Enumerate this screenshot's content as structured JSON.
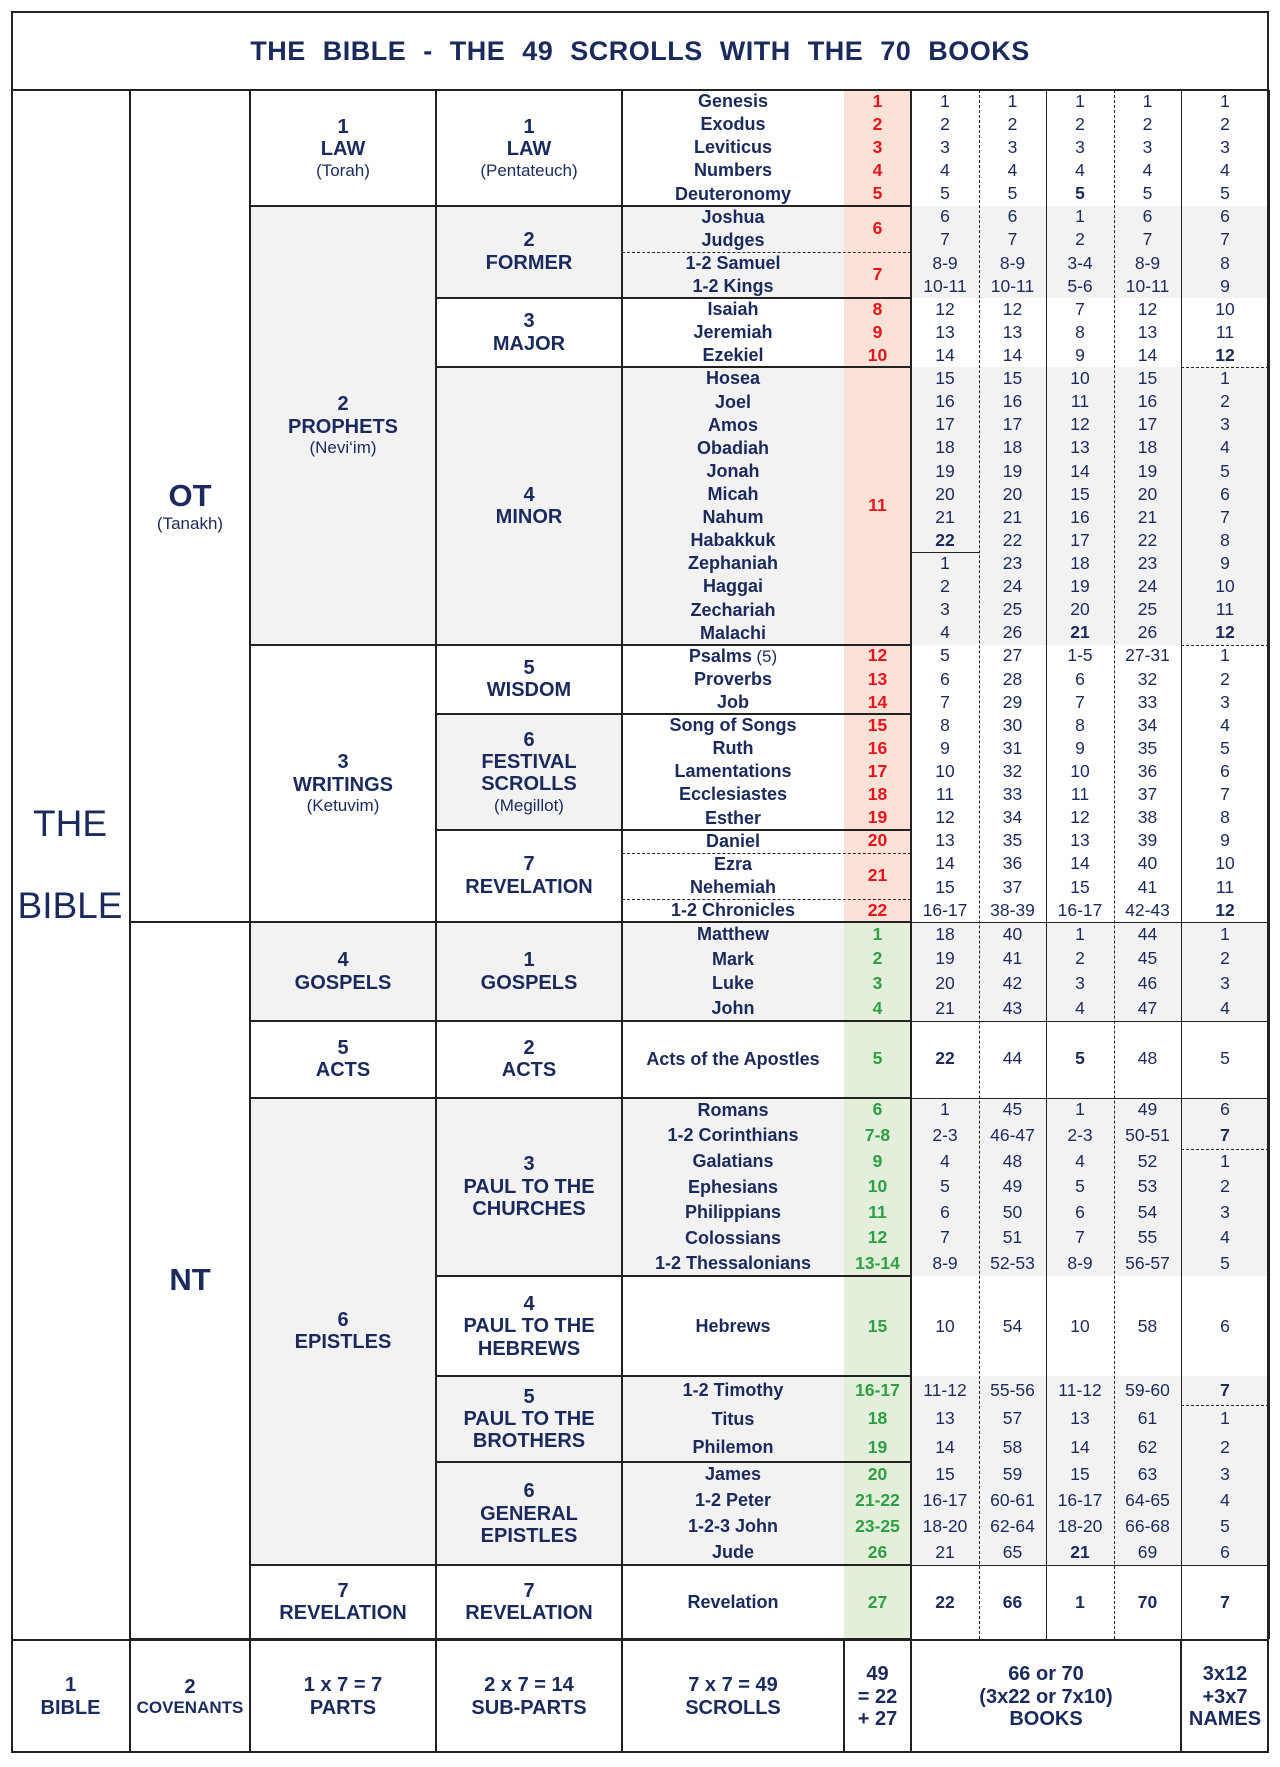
{
  "title": "THE BIBLE - THE 49 SCROLLS WITH THE 70 BOOKS",
  "bible": [
    "THE",
    "BIBLE"
  ],
  "testaments": [
    {
      "label": "OT",
      "sub": "(Tanakh)"
    },
    {
      "label": "NT"
    }
  ],
  "parts": [
    {
      "number": "1",
      "lines": [
        "LAW"
      ],
      "sub": "(Torah)"
    },
    {
      "number": "2",
      "lines": [
        "PROPHETS"
      ],
      "sub": "(Nevi‘im)"
    },
    {
      "number": "3",
      "lines": [
        "WRITINGS"
      ],
      "sub": "(Ketuvim)"
    },
    {
      "number": "4",
      "lines": [
        "GOSPELS"
      ]
    },
    {
      "number": "5",
      "lines": [
        "ACTS"
      ]
    },
    {
      "number": "6",
      "lines": [
        "EPISTLES"
      ]
    },
    {
      "number": "7",
      "lines": [
        "REVELATION"
      ]
    }
  ],
  "subparts": [
    {
      "number": "1",
      "lines": [
        "LAW"
      ],
      "sub": "(Pentateuch)"
    },
    {
      "number": "2",
      "lines": [
        "FORMER"
      ]
    },
    {
      "number": "3",
      "lines": [
        "MAJOR"
      ]
    },
    {
      "number": "4",
      "lines": [
        "MINOR"
      ]
    },
    {
      "number": "5",
      "lines": [
        "WISDOM"
      ]
    },
    {
      "number": "6",
      "lines": [
        "FESTIVAL",
        "SCROLLS"
      ],
      "sub": "(Megillot)"
    },
    {
      "number": "7",
      "lines": [
        "REVELATION"
      ]
    },
    {
      "number": "1",
      "lines": [
        "GOSPELS"
      ]
    },
    {
      "number": "2",
      "lines": [
        "ACTS"
      ]
    },
    {
      "number": "3",
      "lines": [
        "PAUL TO THE",
        "CHURCHES"
      ]
    },
    {
      "number": "4",
      "lines": [
        "PAUL TO THE",
        "HEBREWS"
      ]
    },
    {
      "number": "5",
      "lines": [
        "PAUL TO THE",
        "BROTHERS"
      ]
    },
    {
      "number": "6",
      "lines": [
        "GENERAL",
        "EPISTLES"
      ]
    },
    {
      "number": "7",
      "lines": [
        "REVELATION"
      ]
    }
  ],
  "scrolls": [
    "1",
    "2",
    "3",
    "4",
    "5",
    "6",
    "7",
    "8",
    "9",
    "10",
    "11",
    "12",
    "13",
    "14",
    "15",
    "16",
    "17",
    "18",
    "19",
    "20",
    "21",
    "22",
    "1",
    "2",
    "3",
    "4",
    "5",
    "6",
    "7-8",
    "9",
    "10",
    "11",
    "12",
    "13-14",
    "15",
    "16-17",
    "18",
    "19",
    "20",
    "21-22",
    "23-25",
    "26",
    "27"
  ],
  "books": [
    {
      "name": "Genesis",
      "numbers": [
        "1",
        "1",
        "1",
        "1",
        "1"
      ]
    },
    {
      "name": "Exodus",
      "numbers": [
        "2",
        "2",
        "2",
        "2",
        "2"
      ]
    },
    {
      "name": "Leviticus",
      "numbers": [
        "3",
        "3",
        "3",
        "3",
        "3"
      ]
    },
    {
      "name": "Numbers",
      "numbers": [
        "4",
        "4",
        "4",
        "4",
        "4"
      ]
    },
    {
      "name": "Deuteronomy",
      "numbers": [
        "5",
        "5",
        "5",
        "5",
        "5"
      ]
    },
    {
      "name": "Joshua",
      "numbers": [
        "6",
        "6",
        "1",
        "6",
        "6"
      ]
    },
    {
      "name": "Judges",
      "numbers": [
        "7",
        "7",
        "2",
        "7",
        "7"
      ]
    },
    {
      "name": "1-2 Samuel",
      "numbers": [
        "8-9",
        "8-9",
        "3-4",
        "8-9",
        "8"
      ]
    },
    {
      "name": "1-2 Kings",
      "numbers": [
        "10-11",
        "10-11",
        "5-6",
        "10-11",
        "9"
      ]
    },
    {
      "name": "Isaiah",
      "numbers": [
        "12",
        "12",
        "7",
        "12",
        "10"
      ]
    },
    {
      "name": "Jeremiah",
      "numbers": [
        "13",
        "13",
        "8",
        "13",
        "11"
      ]
    },
    {
      "name": "Ezekiel",
      "numbers": [
        "14",
        "14",
        "9",
        "14",
        "12"
      ]
    },
    {
      "name": "Hosea",
      "numbers": [
        "15",
        "15",
        "10",
        "15",
        "1"
      ]
    },
    {
      "name": "Joel",
      "numbers": [
        "16",
        "16",
        "11",
        "16",
        "2"
      ]
    },
    {
      "name": "Amos",
      "numbers": [
        "17",
        "17",
        "12",
        "17",
        "3"
      ]
    },
    {
      "name": "Obadiah",
      "numbers": [
        "18",
        "18",
        "13",
        "18",
        "4"
      ]
    },
    {
      "name": "Jonah",
      "numbers": [
        "19",
        "19",
        "14",
        "19",
        "5"
      ]
    },
    {
      "name": "Micah",
      "numbers": [
        "20",
        "20",
        "15",
        "20",
        "6"
      ]
    },
    {
      "name": "Nahum",
      "numbers": [
        "21",
        "21",
        "16",
        "21",
        "7"
      ]
    },
    {
      "name": "Habakkuk",
      "numbers": [
        "22",
        "22",
        "17",
        "22",
        "8"
      ]
    },
    {
      "name": "Zephaniah",
      "numbers": [
        "1",
        "23",
        "18",
        "23",
        "9"
      ]
    },
    {
      "name": "Haggai",
      "numbers": [
        "2",
        "24",
        "19",
        "24",
        "10"
      ]
    },
    {
      "name": "Zechariah",
      "numbers": [
        "3",
        "25",
        "20",
        "25",
        "11"
      ]
    },
    {
      "name": "Malachi",
      "numbers": [
        "4",
        "26",
        "21",
        "26",
        "12"
      ]
    },
    {
      "name": "Psalms",
      "note": "(5)",
      "numbers": [
        "5",
        "27",
        "1-5",
        "27-31",
        "1"
      ]
    },
    {
      "name": "Proverbs",
      "numbers": [
        "6",
        "28",
        "6",
        "32",
        "2"
      ]
    },
    {
      "name": "Job",
      "numbers": [
        "7",
        "29",
        "7",
        "33",
        "3"
      ]
    },
    {
      "name": "Song of Songs",
      "numbers": [
        "8",
        "30",
        "8",
        "34",
        "4"
      ]
    },
    {
      "name": "Ruth",
      "numbers": [
        "9",
        "31",
        "9",
        "35",
        "5"
      ]
    },
    {
      "name": "Lamentations",
      "numbers": [
        "10",
        "32",
        "10",
        "36",
        "6"
      ]
    },
    {
      "name": "Ecclesiastes",
      "numbers": [
        "11",
        "33",
        "11",
        "37",
        "7"
      ]
    },
    {
      "name": "Esther",
      "numbers": [
        "12",
        "34",
        "12",
        "38",
        "8"
      ]
    },
    {
      "name": "Daniel",
      "numbers": [
        "13",
        "35",
        "13",
        "39",
        "9"
      ]
    },
    {
      "name": "Ezra",
      "numbers": [
        "14",
        "36",
        "14",
        "40",
        "10"
      ]
    },
    {
      "name": "Nehemiah",
      "numbers": [
        "15",
        "37",
        "15",
        "41",
        "11"
      ]
    },
    {
      "name": "1-2 Chronicles",
      "numbers": [
        "16-17",
        "38-39",
        "16-17",
        "42-43",
        "12"
      ]
    },
    {
      "name": "Matthew",
      "numbers": [
        "18",
        "40",
        "1",
        "44",
        "1"
      ]
    },
    {
      "name": "Mark",
      "numbers": [
        "19",
        "41",
        "2",
        "45",
        "2"
      ]
    },
    {
      "name": "Luke",
      "numbers": [
        "20",
        "42",
        "3",
        "46",
        "3"
      ]
    },
    {
      "name": "John",
      "numbers": [
        "21",
        "43",
        "4",
        "47",
        "4"
      ]
    },
    {
      "name": "Acts of the Apostles",
      "numbers": [
        "22",
        "44",
        "5",
        "48",
        "5"
      ]
    },
    {
      "name": "Romans",
      "numbers": [
        "1",
        "45",
        "1",
        "49",
        "6"
      ]
    },
    {
      "name": "1-2 Corinthians",
      "numbers": [
        "2-3",
        "46-47",
        "2-3",
        "50-51",
        "7"
      ]
    },
    {
      "name": "Galatians",
      "numbers": [
        "4",
        "48",
        "4",
        "52",
        "1"
      ]
    },
    {
      "name": "Ephesians",
      "numbers": [
        "5",
        "49",
        "5",
        "53",
        "2"
      ]
    },
    {
      "name": "Philippians",
      "numbers": [
        "6",
        "50",
        "6",
        "54",
        "3"
      ]
    },
    {
      "name": "Colossians",
      "numbers": [
        "7",
        "51",
        "7",
        "55",
        "4"
      ]
    },
    {
      "name": "1-2 Thessalonians",
      "numbers": [
        "8-9",
        "52-53",
        "8-9",
        "56-57",
        "5"
      ]
    },
    {
      "name": "Hebrews",
      "numbers": [
        "10",
        "54",
        "10",
        "58",
        "6"
      ]
    },
    {
      "name": "1-2 Timothy",
      "numbers": [
        "11-12",
        "55-56",
        "11-12",
        "59-60",
        "7"
      ]
    },
    {
      "name": "Titus",
      "numbers": [
        "13",
        "57",
        "13",
        "61",
        "1"
      ]
    },
    {
      "name": "Philemon",
      "numbers": [
        "14",
        "58",
        "14",
        "62",
        "2"
      ]
    },
    {
      "name": "James",
      "numbers": [
        "15",
        "59",
        "15",
        "63",
        "3"
      ]
    },
    {
      "name": "1-2 Peter",
      "numbers": [
        "16-17",
        "60-61",
        "16-17",
        "64-65",
        "4"
      ]
    },
    {
      "name": "1-2-3 John",
      "numbers": [
        "18-20",
        "62-64",
        "18-20",
        "66-68",
        "5"
      ]
    },
    {
      "name": "Jude",
      "numbers": [
        "21",
        "65",
        "21",
        "69",
        "6"
      ]
    },
    {
      "name": "Revelation",
      "numbers": [
        "22",
        "66",
        "1",
        "70",
        "7"
      ]
    }
  ],
  "footer": [
    {
      "lines": [
        "1",
        "BIBLE"
      ]
    },
    {
      "lines": [
        "2",
        "COVENANTS"
      ]
    },
    {
      "lines": [
        "1 x 7 = 7",
        "PARTS"
      ]
    },
    {
      "lines": [
        "2 x 7 = 14",
        "SUB-PARTS"
      ]
    },
    {
      "lines": [
        "7 x 7 = 49",
        "SCROLLS"
      ]
    },
    {
      "lines": [
        "49",
        "= 22",
        "+ 27"
      ]
    },
    {
      "lines": [
        "66 or 70",
        "(3x22 or 7x10)",
        "BOOKS"
      ]
    },
    {
      "lines": [
        "3x12",
        "+3x7",
        "NAMES"
      ]
    }
  ]
}
